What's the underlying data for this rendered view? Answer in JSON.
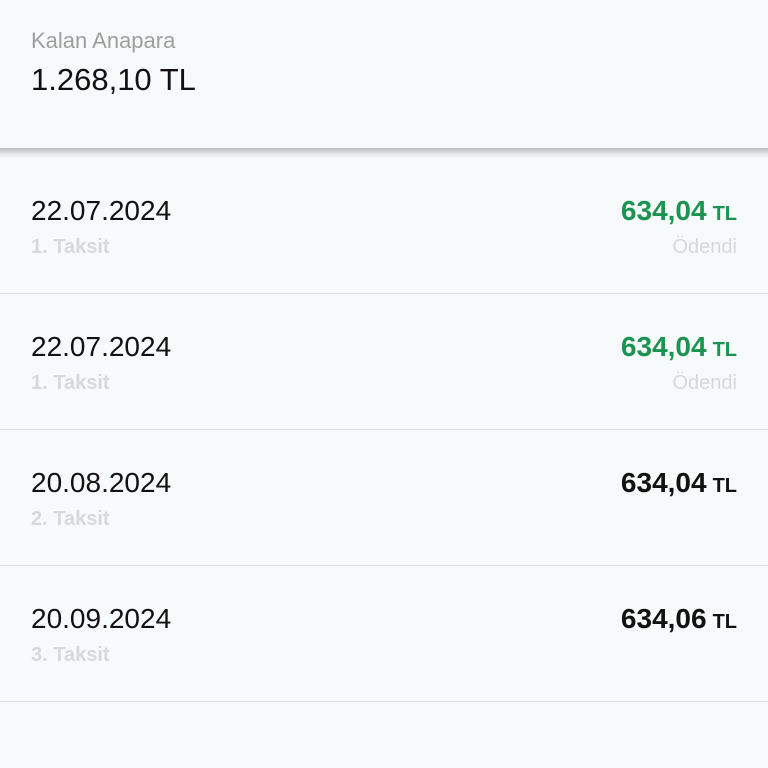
{
  "summary": {
    "label": "Kalan Anapara",
    "value": "1.268,10 TL"
  },
  "colors": {
    "paid": "#1a9450",
    "muted": "#d6d9d9"
  },
  "installments": [
    {
      "date": "22.07.2024",
      "label": "1. Taksit",
      "amount": "634,04",
      "currency": "TL",
      "status": "Ödendi",
      "paid": true
    },
    {
      "date": "22.07.2024",
      "label": "1. Taksit",
      "amount": "634,04",
      "currency": "TL",
      "status": "Ödendi",
      "paid": true
    },
    {
      "date": "20.08.2024",
      "label": "2. Taksit",
      "amount": "634,04",
      "currency": "TL",
      "status": "",
      "paid": false
    },
    {
      "date": "20.09.2024",
      "label": "3. Taksit",
      "amount": "634,06",
      "currency": "TL",
      "status": "",
      "paid": false
    }
  ]
}
